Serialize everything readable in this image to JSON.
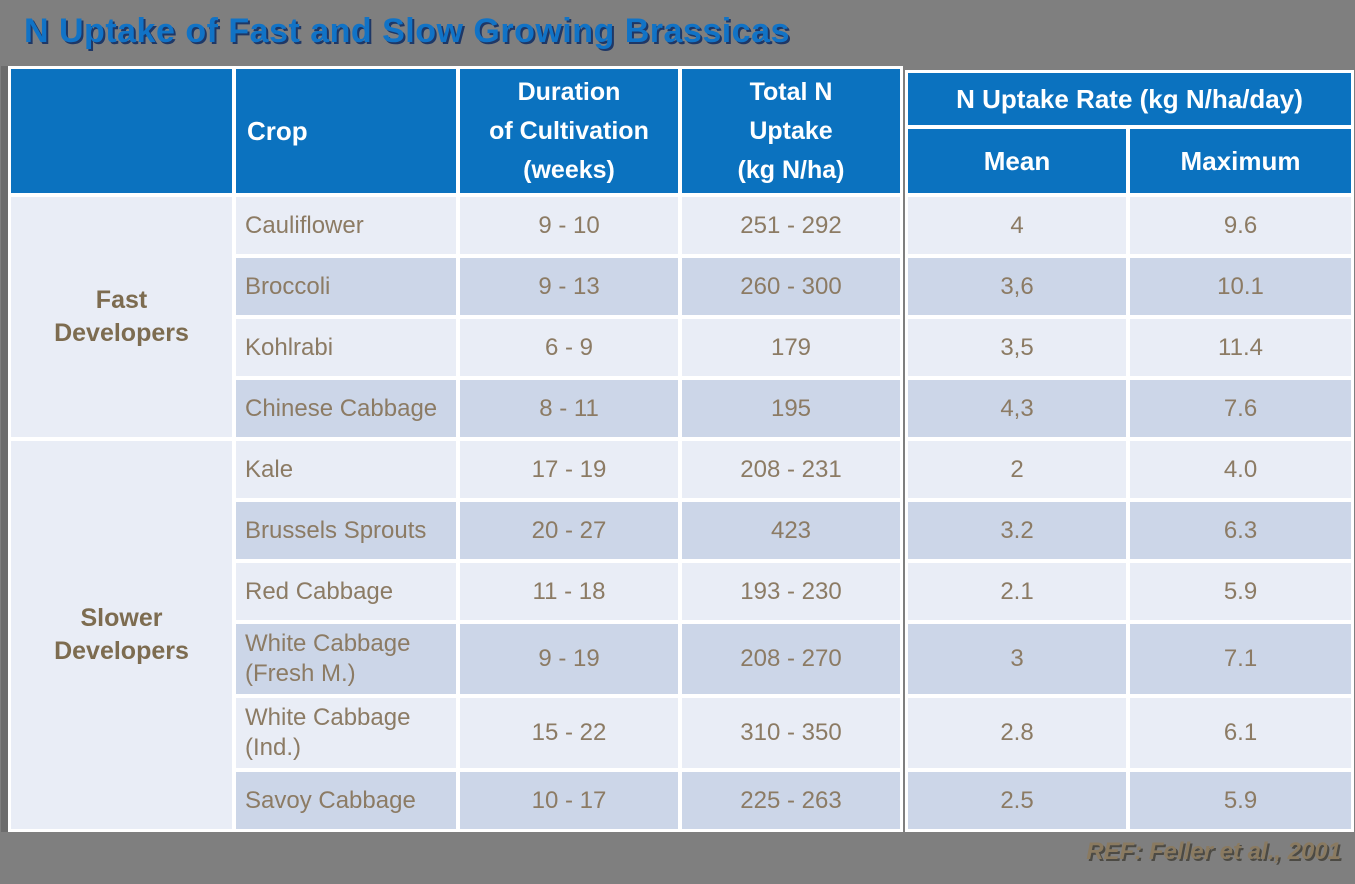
{
  "title": "N Uptake of Fast and Slow Growing Brassicas",
  "reference": "REF: Feller et al., 2001",
  "colors": {
    "slide_background": "#7f7f7f",
    "header_blue": "#0b72bf",
    "title_blue": "#1173c6",
    "title_shadow_navy": "#1e3766",
    "row_light": "#e9edf6",
    "row_dark": "#ccd6e8",
    "cell_text_brown": "#8c7b64",
    "group_label_brown": "#7d6c50",
    "header_text_white": "#ffffff",
    "reference_text": "#8a7a60"
  },
  "chart_data": {
    "type": "table",
    "title": "N Uptake of Fast and Slow Growing Brassicas",
    "headers": {
      "crop": "Crop",
      "duration_lines": [
        "Duration",
        "of Cultivation",
        "(weeks)"
      ],
      "total_lines": [
        "Total N",
        "Uptake",
        "(kg N/ha)"
      ],
      "rate": "N Uptake Rate (kg N/ha/day)",
      "mean": "Mean",
      "maximum": "Maximum"
    },
    "row_groups": [
      {
        "label_lines": [
          "Fast",
          "Developers"
        ],
        "rows": [
          {
            "crop": "Cauliflower",
            "duration_weeks": "9 - 10",
            "total_n_uptake": "251 - 292",
            "mean": "4",
            "maximum": "9.6"
          },
          {
            "crop": "Broccoli",
            "duration_weeks": "9 - 13",
            "total_n_uptake": "260 - 300",
            "mean": "3,6",
            "maximum": "10.1"
          },
          {
            "crop": "Kohlrabi",
            "duration_weeks": "6 - 9",
            "total_n_uptake": "179",
            "mean": "3,5",
            "maximum": "11.4"
          },
          {
            "crop": "Chinese Cabbage",
            "duration_weeks": "8 - 11",
            "total_n_uptake": "195",
            "mean": "4,3",
            "maximum": "7.6"
          }
        ]
      },
      {
        "label_lines": [
          "Slower",
          "Developers"
        ],
        "rows": [
          {
            "crop": "Kale",
            "duration_weeks": "17 - 19",
            "total_n_uptake": "208 - 231",
            "mean": "2",
            "maximum": "4.0"
          },
          {
            "crop": "Brussels Sprouts",
            "duration_weeks": "20 - 27",
            "total_n_uptake": "423",
            "mean": "3.2",
            "maximum": "6.3"
          },
          {
            "crop": "Red Cabbage",
            "duration_weeks": "11 - 18",
            "total_n_uptake": "193 - 230",
            "mean": "2.1",
            "maximum": "5.9"
          },
          {
            "crop": "White Cabbage (Fresh M.)",
            "duration_weeks": "9 - 19",
            "total_n_uptake": "208 - 270",
            "mean": "3",
            "maximum": "7.1"
          },
          {
            "crop": "White Cabbage (Ind.)",
            "duration_weeks": "15 - 22",
            "total_n_uptake": "310 - 350",
            "mean": "2.8",
            "maximum": "6.1"
          },
          {
            "crop": "Savoy Cabbage",
            "duration_weeks": "10 - 17",
            "total_n_uptake": "225 - 263",
            "mean": "2.5",
            "maximum": "5.9"
          }
        ]
      }
    ]
  }
}
